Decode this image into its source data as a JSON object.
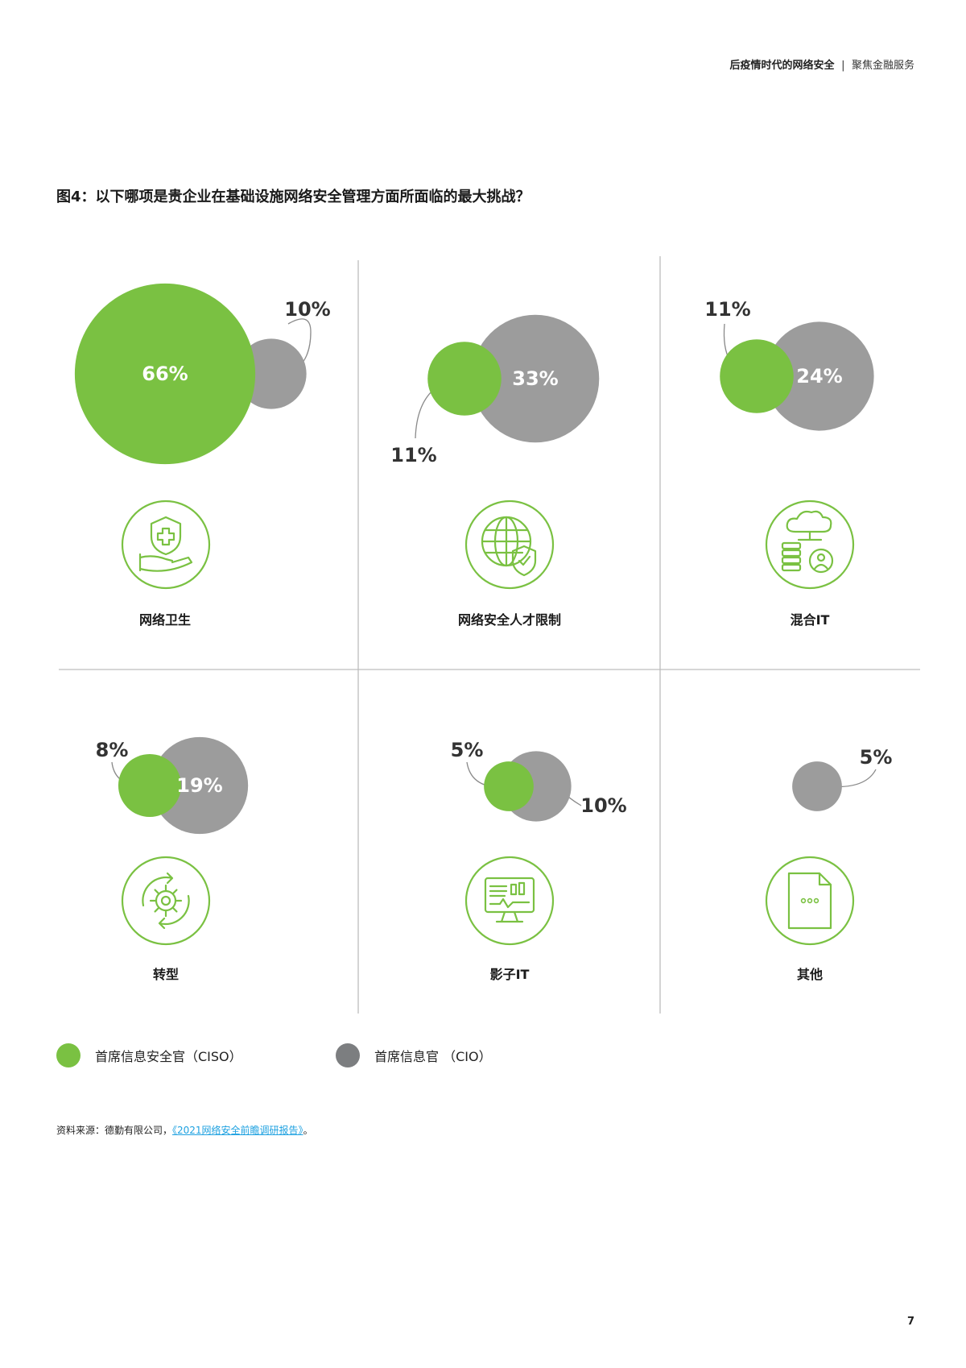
{
  "header": {
    "title": "后疫情时代的网络安全",
    "separator": "|",
    "subtitle": "聚焦金融服务"
  },
  "figure_title": "图4：以下哪项是贵企业在基础设施网络安全管理方面所面临的最大挑战？",
  "colors": {
    "ciso": "#7ac142",
    "cio": "#9c9c9c",
    "cio_legend": "#7c7e80",
    "divider": "#bdbdbd",
    "link": "#1ea1e0"
  },
  "chart_data": {
    "type": "bubble",
    "title": "图4：以下哪项是贵企业在基础设施网络安全管理方面所面临的最大挑战？",
    "unit": "%",
    "series": [
      {
        "name": "首席信息安全官（CISO）",
        "key": "ciso"
      },
      {
        "name": "首席信息官（CIO）",
        "key": "cio"
      }
    ],
    "categories": [
      {
        "label": "网络卫生",
        "icon": "shield-hand-icon",
        "ciso": 66,
        "cio": 10,
        "ciso_label": "66%",
        "cio_label": "10%"
      },
      {
        "label": "网络安全人才限制",
        "icon": "globe-shield-icon",
        "ciso": 11,
        "cio": 33,
        "ciso_label": "11%",
        "cio_label": "33%"
      },
      {
        "label": "混合IT",
        "icon": "cloud-server-user-icon",
        "ciso": 11,
        "cio": 24,
        "ciso_label": "11%",
        "cio_label": "24%"
      },
      {
        "label": "转型",
        "icon": "gear-cycle-icon",
        "ciso": 8,
        "cio": 19,
        "ciso_label": "8%",
        "cio_label": "19%"
      },
      {
        "label": "影子IT",
        "icon": "monitor-dashboard-icon",
        "ciso": 5,
        "cio": 10,
        "ciso_label": "5%",
        "cio_label": "10%"
      },
      {
        "label": "其他",
        "icon": "document-dots-icon",
        "ciso": null,
        "cio": 5,
        "ciso_label": null,
        "cio_label": "5%"
      }
    ]
  },
  "legend": {
    "ciso": "首席信息安全官（CISO）",
    "cio": "首席信息官 （CIO）"
  },
  "source": {
    "prefix": "资料来源：德勤有限公司，",
    "link_text": "《2021网络安全前瞻调研报告》",
    "suffix": "。"
  },
  "page_number": "7"
}
